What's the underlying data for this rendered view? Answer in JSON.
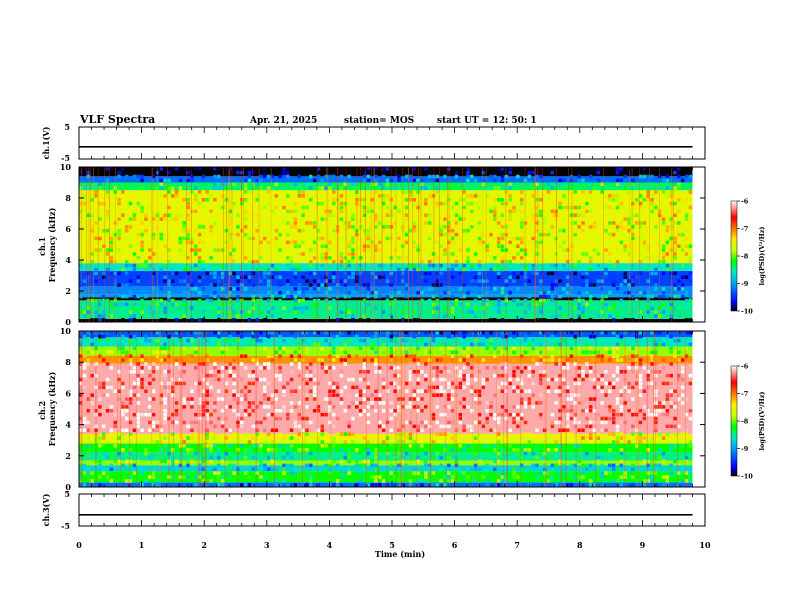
{
  "header": {
    "title": "VLF Spectra",
    "date": "Apr. 21, 2025",
    "station": "station= MOS",
    "start_time": "start UT =   12: 50: 1"
  },
  "chart_data": [
    {
      "type": "line",
      "panel": "ch1-waveform",
      "ylabel": "ch.1(V)",
      "ylim": [
        -5,
        5
      ],
      "yticks": [
        "5",
        "-5"
      ],
      "xlim": [
        0,
        10
      ],
      "series": [
        {
          "x": [
            0,
            9.8
          ],
          "values": [
            -1.2,
            -1.2
          ]
        }
      ]
    },
    {
      "type": "heatmap",
      "panel": "ch1-spectrogram",
      "ylabel": "ch.1 Frequency (kHz)",
      "ylim": [
        0,
        10
      ],
      "yticks": [
        "0",
        "2",
        "4",
        "6",
        "8",
        "10"
      ],
      "xlim": [
        0,
        10
      ],
      "data_end_min": 9.8,
      "bands": [
        {
          "from": 0,
          "to": 0.2,
          "level": -10
        },
        {
          "from": 0.2,
          "to": 1.4,
          "level": -8.5
        },
        {
          "from": 1.4,
          "to": 1.6,
          "level": -10
        },
        {
          "from": 1.6,
          "to": 1.8,
          "level": -9
        },
        {
          "from": 1.8,
          "to": 2.3,
          "level": -9.1
        },
        {
          "from": 2.3,
          "to": 3.3,
          "level": -9.4
        },
        {
          "from": 3.3,
          "to": 3.8,
          "level": -8.6
        },
        {
          "from": 3.8,
          "to": 8.5,
          "level": -7.6
        },
        {
          "from": 8.5,
          "to": 9.0,
          "level": -8.4
        },
        {
          "from": 9.0,
          "to": 9.4,
          "level": -9.2
        },
        {
          "from": 9.4,
          "to": 10,
          "level": -10
        }
      ],
      "colorbar": {
        "ticks": [
          "-6",
          "-7",
          "-8",
          "-9",
          "-10"
        ],
        "label": "log(PSD)(V²/Hz)"
      }
    },
    {
      "type": "heatmap",
      "panel": "ch2-spectrogram",
      "ylabel": "ch.2 Frequency (kHz)",
      "ylim": [
        0,
        10
      ],
      "yticks": [
        "0",
        "2",
        "4",
        "6",
        "8",
        "10"
      ],
      "xlim": [
        0,
        10
      ],
      "data_end_min": 9.8,
      "bands": [
        {
          "from": 0,
          "to": 0.3,
          "level": -9.2
        },
        {
          "from": 0.3,
          "to": 1.0,
          "level": -8.2
        },
        {
          "from": 1.0,
          "to": 1.4,
          "level": -8.7
        },
        {
          "from": 1.4,
          "to": 1.7,
          "level": -7.9
        },
        {
          "from": 1.7,
          "to": 2.2,
          "level": -8.5
        },
        {
          "from": 2.2,
          "to": 2.8,
          "level": -8.2
        },
        {
          "from": 2.8,
          "to": 3.4,
          "level": -7.6
        },
        {
          "from": 3.4,
          "to": 7.9,
          "level": -6.2
        },
        {
          "from": 7.9,
          "to": 8.4,
          "level": -7.1
        },
        {
          "from": 8.4,
          "to": 9.0,
          "level": -7.9
        },
        {
          "from": 9.0,
          "to": 9.6,
          "level": -8.6
        },
        {
          "from": 9.6,
          "to": 10,
          "level": -9.3
        }
      ],
      "colorbar": {
        "ticks": [
          "-6",
          "-7",
          "-8",
          "-9",
          "-10"
        ],
        "label": "log(PSD)(V²/Hz)"
      }
    },
    {
      "type": "line",
      "panel": "ch3-waveform",
      "ylabel": "ch.3(V)",
      "ylim": [
        -5,
        5
      ],
      "yticks": [
        "5",
        "-5"
      ],
      "xlim": [
        0,
        10
      ],
      "series": [
        {
          "x": [
            0,
            9.8
          ],
          "values": [
            -1.5,
            -1.5
          ]
        }
      ]
    }
  ],
  "x_axis": {
    "label": "Time (min)",
    "ticks": [
      "0",
      "1",
      "2",
      "3",
      "4",
      "5",
      "6",
      "7",
      "8",
      "9",
      "10"
    ]
  },
  "colors": {
    "colormap": [
      "#000000",
      "#0000ff",
      "#00a0ff",
      "#00e8c0",
      "#00ff00",
      "#c8ff00",
      "#ffee00",
      "#ff8000",
      "#ff0000",
      "#ffffff"
    ]
  }
}
